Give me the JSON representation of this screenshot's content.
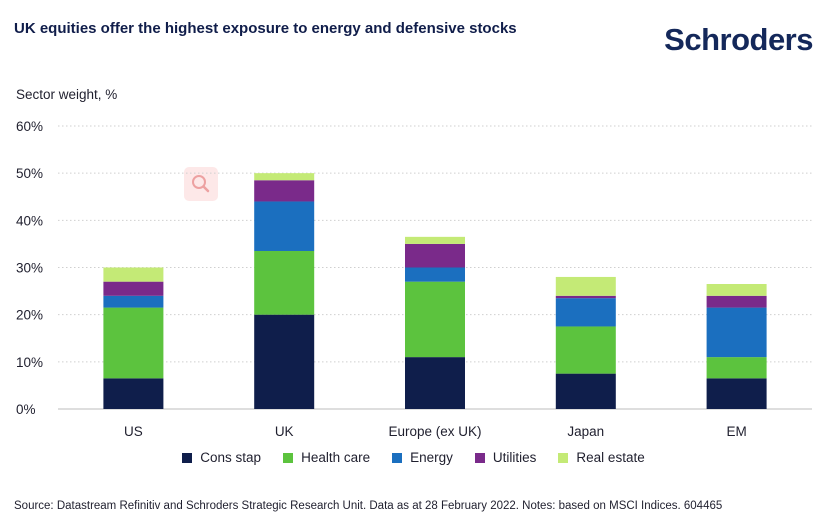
{
  "header": {
    "title": "UK equities offer the highest exposure to energy and defensive stocks",
    "logo_text": "Schroders"
  },
  "footer": {
    "source": "Source: Datastream Refinitiv and Schroders Strategic Research Unit. Data as at 28 February 2022. Notes: based on MSCI Indices. 604465"
  },
  "colors": {
    "Cons stap": "#0f1e4b",
    "Health care": "#5cc33e",
    "Energy": "#1b6fbf",
    "Utilities": "#7a2a8a",
    "Real estate": "#c4ea76",
    "grid": "#cfcfcf",
    "text": "#1f1f2e"
  },
  "chart_data": {
    "type": "bar",
    "stacked": true,
    "ylabel": "Sector weight, %",
    "xlabel": "",
    "ylim": [
      0,
      60
    ],
    "yticks": [
      0,
      10,
      20,
      30,
      40,
      50,
      60
    ],
    "ytick_labels": [
      "0%",
      "10%",
      "20%",
      "30%",
      "40%",
      "50%",
      "60%"
    ],
    "grid": "horizontal dotted",
    "legend_placement": "bottom",
    "categories": [
      "US",
      "UK",
      "Europe (ex UK)",
      "Japan",
      "EM"
    ],
    "series": [
      {
        "name": "Cons stap",
        "values": [
          6.5,
          20,
          11,
          7.5,
          6.5
        ]
      },
      {
        "name": "Health care",
        "values": [
          15,
          13.5,
          16,
          10,
          4.5
        ]
      },
      {
        "name": "Energy",
        "values": [
          2.5,
          10.5,
          3,
          6,
          10.5
        ]
      },
      {
        "name": "Utilities",
        "values": [
          3,
          4.5,
          5,
          0.5,
          2.5
        ]
      },
      {
        "name": "Real estate",
        "values": [
          3,
          1.5,
          1.5,
          4,
          2.5
        ]
      }
    ]
  }
}
